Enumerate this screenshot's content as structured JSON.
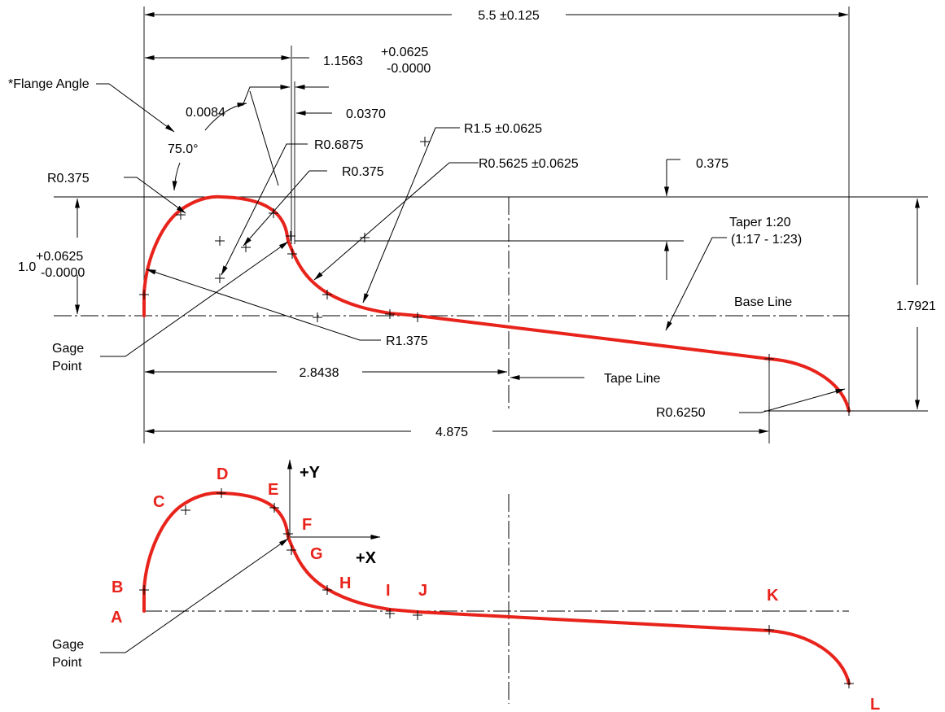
{
  "colors": {
    "profile": "#e8231b",
    "lines": "#000000",
    "background": "#ffffff"
  },
  "dimensions": {
    "overall_width": "5.5 ±0.125",
    "gage_offset": "1.1563",
    "gage_offset_plus": "+0.0625",
    "gage_offset_minus": "-0.0000",
    "flange_angle_label": "*Flange Angle",
    "flange_angle_value": "75.0°",
    "step_0084": "0.0084",
    "step_0370": "0.0370",
    "r_6875": "R0.6875",
    "r_375_right": "R0.375",
    "r_375_left": "R0.375",
    "r_1_5": "R1.5 ±0.0625",
    "r_5625": "R0.5625 ±0.0625",
    "v_0375": "0.375",
    "taper": "Taper 1:20",
    "taper_range": "(1:17 - 1:23)",
    "height_1_0": "1.0",
    "height_1_0_plus": "+0.0625",
    "height_1_0_minus": "-0.0000",
    "r_1_375": "R1.375",
    "base_line": "Base Line",
    "height_17921": "1.7921",
    "gage_point_1": "Gage",
    "gage_point_2": "Point",
    "tape_dist": "2.8438",
    "tape_line": "Tape Line",
    "r_625": "R0.6250",
    "width_4875": "4.875"
  },
  "lower_view": {
    "axis_y": "+Y",
    "axis_x": "+X",
    "gage_point_1": "Gage",
    "gage_point_2": "Point",
    "points": [
      "A",
      "B",
      "C",
      "D",
      "E",
      "F",
      "G",
      "H",
      "I",
      "J",
      "K",
      "L"
    ]
  }
}
